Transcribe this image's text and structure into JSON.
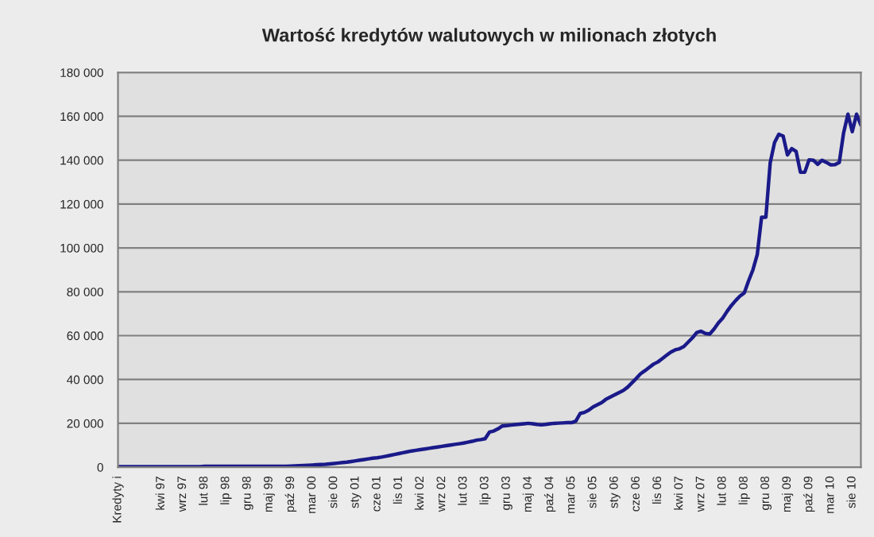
{
  "chart_data": {
    "type": "line",
    "title": "Wartość kredytów walutowych w milionach złotych",
    "categories": [
      "Kredyty i",
      null,
      null,
      null,
      null,
      null,
      null,
      null,
      null,
      null,
      "kwi 97",
      null,
      null,
      null,
      null,
      "wrz 97",
      null,
      null,
      null,
      null,
      "lut 98",
      null,
      null,
      null,
      null,
      "lip 98",
      null,
      null,
      null,
      null,
      "gru 98",
      null,
      null,
      null,
      null,
      "maj 99",
      null,
      null,
      null,
      null,
      "paź 99",
      null,
      null,
      null,
      null,
      "mar 00",
      null,
      null,
      null,
      null,
      "sie 00",
      null,
      null,
      null,
      null,
      "sty 01",
      null,
      null,
      null,
      null,
      "cze 01",
      null,
      null,
      null,
      null,
      "lis 01",
      null,
      null,
      null,
      null,
      "kwi 02",
      null,
      null,
      null,
      null,
      "wrz 02",
      null,
      null,
      null,
      null,
      "lut 03",
      null,
      null,
      null,
      null,
      "lip 03",
      null,
      null,
      null,
      null,
      "gru 03",
      null,
      null,
      null,
      null,
      "maj 04",
      null,
      null,
      null,
      null,
      "paź 04",
      null,
      null,
      null,
      null,
      "mar 05",
      null,
      null,
      null,
      null,
      "sie 05",
      null,
      null,
      null,
      null,
      "sty 06",
      null,
      null,
      null,
      null,
      "cze 06",
      null,
      null,
      null,
      null,
      "lis 06",
      null,
      null,
      null,
      null,
      "kwi 07",
      null,
      null,
      null,
      null,
      "wrz 07",
      null,
      null,
      null,
      null,
      "lut 08",
      null,
      null,
      null,
      null,
      "lip 08",
      null,
      null,
      null,
      null,
      "gru 08",
      null,
      null,
      null,
      null,
      "maj 09",
      null,
      null,
      null,
      null,
      "paź 09",
      null,
      null,
      null,
      null,
      "mar 10",
      null,
      null,
      null,
      null,
      "sie 10",
      null,
      null
    ],
    "series": [
      {
        "color": "#1a1a8a",
        "values": [
          200,
          200,
          200,
          200,
          200,
          200,
          200,
          200,
          200,
          200,
          200,
          200,
          200,
          200,
          200,
          200,
          200,
          200,
          200,
          200,
          400,
          400,
          400,
          400,
          400,
          400,
          400,
          400,
          400,
          400,
          400,
          400,
          400,
          400,
          400,
          400,
          400,
          400,
          400,
          400,
          500,
          600,
          700,
          800,
          900,
          1000,
          1100,
          1200,
          1300,
          1500,
          1700,
          1900,
          2100,
          2300,
          2600,
          2900,
          3200,
          3500,
          3800,
          4100,
          4300,
          4600,
          5000,
          5400,
          5800,
          6200,
          6600,
          7000,
          7400,
          7700,
          8000,
          8300,
          8600,
          8900,
          9200,
          9500,
          9800,
          10100,
          10400,
          10700,
          11000,
          11400,
          11800,
          12300,
          12600,
          13000,
          16000,
          16500,
          17500,
          18800,
          19000,
          19200,
          19400,
          19600,
          19800,
          20000,
          19800,
          19500,
          19300,
          19500,
          19800,
          20000,
          20100,
          20200,
          20300,
          20300,
          21000,
          24500,
          25000,
          26000,
          27500,
          28500,
          29500,
          31000,
          32000,
          33000,
          34000,
          35000,
          36500,
          38500,
          40500,
          42600,
          44000,
          45500,
          47000,
          48000,
          49500,
          51000,
          52500,
          53500,
          54000,
          55000,
          57000,
          59000,
          61400,
          62000,
          61000,
          60700,
          63000,
          65800,
          68000,
          71000,
          73700,
          76000,
          78000,
          79500,
          85000,
          90000,
          96900,
          114000,
          114000,
          138800,
          148000,
          151800,
          151000,
          142400,
          145300,
          144000,
          134500,
          134500,
          140200,
          140000,
          138100,
          140000,
          139000,
          137900,
          138000,
          139000,
          152500,
          161000,
          153000,
          161000,
          156000
        ]
      }
    ],
    "ylim": [
      0,
      180000
    ],
    "yticks": [
      {
        "value": 0,
        "label": "0"
      },
      {
        "value": 20000,
        "label": "20 000"
      },
      {
        "value": 40000,
        "label": "40 000"
      },
      {
        "value": 60000,
        "label": "60 000"
      },
      {
        "value": 80000,
        "label": "80 000"
      },
      {
        "value": 100000,
        "label": "100 000"
      },
      {
        "value": 120000,
        "label": "120 000"
      },
      {
        "value": 140000,
        "label": "140 000"
      },
      {
        "value": 160000,
        "label": "160 000"
      },
      {
        "value": 180000,
        "label": "180 000"
      }
    ],
    "grid": "y",
    "marker": "none",
    "line_style": "solid"
  }
}
